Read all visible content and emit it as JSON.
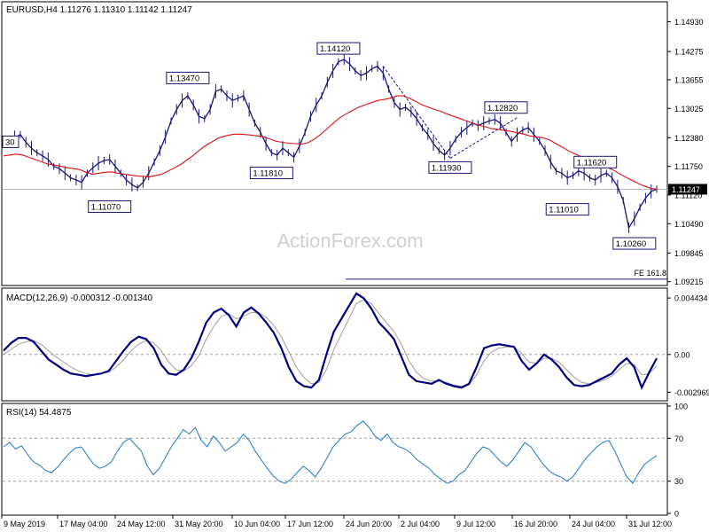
{
  "chart_data": [
    {
      "type": "line",
      "panel": "price",
      "title": "EURUSD,H4  1.11276 1.11310 1.11142 1.11247",
      "watermark": "ActionForex.com",
      "ylim": [
        1.0915,
        1.1535
      ],
      "y_ticks": [
        "1.14930",
        "1.14275",
        "1.13655",
        "1.13025",
        "1.12380",
        "1.11750",
        "1.11120",
        "1.10490",
        "1.09845",
        "1.09215"
      ],
      "current_price": "1.11247",
      "x_labels": [
        "9 May 2019",
        "17 May 04:00",
        "24 May 12:00",
        "31 May 20:00",
        "10 Jun 04:00",
        "17 Jun 12:00",
        "24 Jun 20:00",
        "2 Jul 04:00",
        "9 Jul 12:00",
        "16 Jul 20:00",
        "24 Jul 04:00",
        "31 Jul 12:00"
      ],
      "series": [
        {
          "values": [
            1.1225,
            1.123,
            1.1238,
            1.1245,
            1.1228,
            1.1215,
            1.1205,
            1.1198,
            1.119,
            1.1175,
            1.117,
            1.116,
            1.115,
            1.1145,
            1.114,
            1.116,
            1.1172,
            1.1182,
            1.1188,
            1.119,
            1.1175,
            1.116,
            1.1145,
            1.1135,
            1.1128,
            1.114,
            1.116,
            1.1185,
            1.121,
            1.124,
            1.1275,
            1.13,
            1.132,
            1.133,
            1.131,
            1.1285,
            1.128,
            1.13,
            1.134,
            1.1345,
            1.133,
            1.132,
            1.1325,
            1.133,
            1.13,
            1.127,
            1.125,
            1.1225,
            1.1205,
            1.12,
            1.1215,
            1.1205,
            1.1195,
            1.122,
            1.125,
            1.1285,
            1.131,
            1.133,
            1.136,
            1.1385,
            1.1405,
            1.141,
            1.14,
            1.1385,
            1.1375,
            1.138,
            1.139,
            1.1395,
            1.138,
            1.1345,
            1.1315,
            1.13,
            1.1305,
            1.1295,
            1.128,
            1.126,
            1.1245,
            1.1225,
            1.121,
            1.12,
            1.1215,
            1.1235,
            1.125,
            1.126,
            1.127,
            1.1265,
            1.127,
            1.1275,
            1.1278,
            1.127,
            1.125,
            1.123,
            1.1245,
            1.1255,
            1.126,
            1.1245,
            1.123,
            1.121,
            1.1185,
            1.1165,
            1.116,
            1.115,
            1.1155,
            1.1165,
            1.116,
            1.115,
            1.1145,
            1.1155,
            1.116,
            1.115,
            1.113,
            1.11,
            1.104,
            1.106,
            1.1085,
            1.1105,
            1.112,
            1.1125
          ],
          "color": "#17177a"
        },
        {
          "name": "SMA",
          "values": [
            1.1198,
            1.12,
            1.1202,
            1.12,
            1.1195,
            1.119,
            1.1185,
            1.118,
            1.1178,
            1.1175,
            1.1172,
            1.117,
            1.1168,
            1.1162,
            1.1158,
            1.116,
            1.1162,
            1.1163,
            1.116,
            1.1158,
            1.1156,
            1.1154,
            1.1153,
            1.1152,
            1.1155,
            1.1158,
            1.1165,
            1.1172,
            1.118,
            1.119,
            1.12,
            1.1212,
            1.1222,
            1.123,
            1.1238,
            1.1242,
            1.1245,
            1.1246,
            1.1245,
            1.1244,
            1.1242,
            1.124,
            1.1235,
            1.123,
            1.1228,
            1.1226,
            1.1225,
            1.1224,
            1.1227,
            1.1235,
            1.1245,
            1.1258,
            1.127,
            1.1282,
            1.129,
            1.1298,
            1.1305,
            1.131,
            1.1315,
            1.132,
            1.1322,
            1.1325,
            1.133,
            1.133,
            1.1325,
            1.1318,
            1.131,
            1.1305,
            1.13,
            1.1296,
            1.129,
            1.1285,
            1.128,
            1.1275,
            1.127,
            1.1265,
            1.1262,
            1.1258,
            1.1256,
            1.1254,
            1.1252,
            1.1249,
            1.1246,
            1.1242,
            1.124,
            1.1238,
            1.1234,
            1.1226,
            1.1218,
            1.121,
            1.1203,
            1.1197,
            1.1192,
            1.1186,
            1.118,
            1.1174,
            1.1168,
            1.116,
            1.1152,
            1.1145,
            1.1138,
            1.1132,
            1.1127,
            1.1125
          ],
          "color": "#e01010"
        }
      ],
      "annotations": [
        {
          "label": "1.13470",
          "x_index": 33,
          "y": 1.1347
        },
        {
          "label": "1.11810",
          "x_index": 48,
          "y": 1.1181
        },
        {
          "label": "1.14120",
          "x_index": 60,
          "y": 1.1412
        },
        {
          "label": "1.11930",
          "x_index": 80,
          "y": 1.1193
        },
        {
          "label": "1.12820",
          "x_index": 90,
          "y": 1.1282
        },
        {
          "label": "1.11070",
          "x_index": 19,
          "y": 1.1107
        },
        {
          "label": "1.11010",
          "x_index": 101,
          "y": 1.1101
        },
        {
          "label": "1.11620",
          "x_index": 106,
          "y": 1.1162
        },
        {
          "label": "1.10260",
          "x_index": 113,
          "y": 1.1026
        },
        {
          "label": "30",
          "x_index": 0,
          "y": 1.123
        },
        {
          "label": "FE 161.8",
          "y": 1.0927
        }
      ]
    },
    {
      "type": "line",
      "panel": "macd",
      "title": "MACD(12,26,9) -0.000312 -0.001340",
      "ylim": [
        -0.0035,
        0.005
      ],
      "y_ticks": [
        "0.004434",
        "0.00",
        "-0.002969"
      ],
      "series": [
        {
          "values": [
            0.0003,
            0.0009,
            0.0013,
            0.0013,
            0.001,
            0.0003,
            -0.0004,
            -0.0008,
            -0.0012,
            -0.0015,
            -0.0016,
            -0.0017,
            -0.0016,
            -0.0015,
            -0.0013,
            -0.0005,
            0.0003,
            0.001,
            0.0014,
            0.0012,
            0.0005,
            -0.0008,
            -0.0015,
            -0.0016,
            -0.0012,
            -0.0003,
            0.001,
            0.0025,
            0.0033,
            0.0036,
            0.0031,
            0.0022,
            0.0033,
            0.0037,
            0.0032,
            0.0025,
            0.0017,
            0.0005,
            -0.001,
            -0.0021,
            -0.0025,
            -0.0026,
            -0.002,
            0.0,
            0.0018,
            0.0028,
            0.0038,
            0.0048,
            0.0044,
            0.0036,
            0.0025,
            0.0019,
            0.0012,
            -0.0002,
            -0.0016,
            -0.0021,
            -0.0022,
            -0.0023,
            -0.002,
            -0.0023,
            -0.0025,
            -0.0026,
            -0.0023,
            -0.001,
            0.0005,
            0.0007,
            0.0008,
            0.0007,
            0.0006,
            -0.0005,
            -0.0012,
            -0.0007,
            0.0,
            -0.0004,
            -0.001,
            -0.0018,
            -0.0024,
            -0.0025,
            -0.0024,
            -0.0021,
            -0.0018,
            -0.0015,
            -0.0008,
            -0.0003,
            -0.001,
            -0.0026,
            -0.0014,
            -0.0003
          ],
          "color": "#000080"
        },
        {
          "values": [
            0.0,
            0.0004,
            0.0008,
            0.001,
            0.0011,
            0.0008,
            0.0003,
            -0.0002,
            -0.0006,
            -0.001,
            -0.0013,
            -0.0015,
            -0.0016,
            -0.0015,
            -0.0014,
            -0.001,
            -0.0004,
            0.0003,
            0.0008,
            0.0011,
            0.0009,
            0.0003,
            -0.0006,
            -0.0012,
            -0.0013,
            -0.0009,
            -0.0001,
            0.0012,
            0.0022,
            0.003,
            0.0032,
            0.0028,
            0.003,
            0.0033,
            0.0033,
            0.0029,
            0.0023,
            0.0014,
            0.0002,
            -0.001,
            -0.0018,
            -0.0023,
            -0.0022,
            -0.0012,
            0.0004,
            0.0016,
            0.0028,
            0.004,
            0.0043,
            0.004,
            0.0032,
            0.0025,
            0.0018,
            0.0008,
            -0.0005,
            -0.0014,
            -0.0019,
            -0.0021,
            -0.0021,
            -0.0022,
            -0.0024,
            -0.0025,
            -0.0024,
            -0.0016,
            -0.0005,
            0.0002,
            0.0005,
            0.0006,
            0.0006,
            0.0001,
            -0.0006,
            -0.0007,
            -0.0003,
            -0.0003,
            -0.0006,
            -0.0012,
            -0.0018,
            -0.0022,
            -0.0023,
            -0.0022,
            -0.002,
            -0.0017,
            -0.0012,
            -0.0007,
            -0.0008,
            -0.0016,
            -0.0015,
            -0.0009
          ],
          "color": "#a0a0a0"
        }
      ]
    },
    {
      "type": "line",
      "panel": "rsi",
      "title": "RSI(14) 54.4875",
      "ylim": [
        0,
        100
      ],
      "y_ticks": [
        "100",
        "70",
        "30",
        "0"
      ],
      "series": [
        {
          "values": [
            62,
            66,
            60,
            63,
            55,
            48,
            45,
            40,
            38,
            43,
            50,
            56,
            61,
            62,
            54,
            46,
            42,
            44,
            48,
            58,
            66,
            70,
            64,
            58,
            44,
            36,
            42,
            52,
            62,
            70,
            78,
            74,
            80,
            68,
            62,
            72,
            66,
            58,
            62,
            66,
            74,
            68,
            58,
            50,
            42,
            35,
            30,
            28,
            32,
            38,
            44,
            40,
            34,
            42,
            52,
            62,
            68,
            74,
            76,
            82,
            86,
            80,
            72,
            68,
            74,
            66,
            62,
            60,
            56,
            50,
            46,
            42,
            36,
            32,
            28,
            30,
            36,
            40,
            48,
            56,
            62,
            60,
            54,
            48,
            44,
            50,
            58,
            66,
            62,
            54,
            46,
            40,
            36,
            34,
            30,
            34,
            42,
            50,
            56,
            62,
            66,
            68,
            58,
            46,
            34,
            28,
            38,
            46,
            50,
            54
          ],
          "color": "#1e78c8"
        }
      ]
    }
  ]
}
